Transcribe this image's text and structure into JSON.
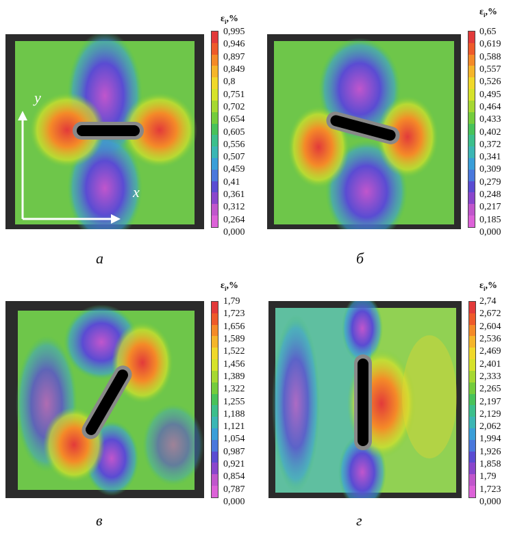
{
  "panels": [
    {
      "id": "a",
      "caption": "а",
      "unit": {
        "symbol": "ε",
        "sub": "i",
        "suffix": ",%"
      },
      "ticks": [
        "0,995",
        "0,946",
        "0,897",
        "0,849",
        "0,8",
        "0,751",
        "0,702",
        "0,654",
        "0,605",
        "0,556",
        "0,507",
        "0,459",
        "0,41",
        "0,361",
        "0,312",
        "0,264",
        "0,000"
      ],
      "axis_x": "x",
      "axis_y": "y",
      "slot_angle_deg": 0
    },
    {
      "id": "b",
      "caption": "б",
      "unit": {
        "symbol": "ε",
        "sub": "i",
        "suffix": ",%"
      },
      "ticks": [
        "0,65",
        "0,619",
        "0,588",
        "0,557",
        "0,526",
        "0,495",
        "0,464",
        "0,433",
        "0,402",
        "0,372",
        "0,341",
        "0,309",
        "0,279",
        "0,248",
        "0,217",
        "0,185",
        "0,000"
      ],
      "slot_angle_deg": 15
    },
    {
      "id": "c",
      "caption": "в",
      "unit": {
        "symbol": "ε",
        "sub": "i",
        "suffix": ",%"
      },
      "ticks": [
        "1,79",
        "1,723",
        "1,656",
        "1,589",
        "1,522",
        "1,456",
        "1,389",
        "1,322",
        "1,255",
        "1,188",
        "1,121",
        "1,054",
        "0,987",
        "0,921",
        "0,854",
        "0,787",
        "0,000"
      ],
      "slot_angle_deg": -60
    },
    {
      "id": "d",
      "caption": "г",
      "unit": {
        "symbol": "ε",
        "sub": "i",
        "suffix": ",%"
      },
      "ticks": [
        "2,74",
        "2,672",
        "2,604",
        "2,536",
        "2,469",
        "2,401",
        "2,333",
        "2,265",
        "2,197",
        "2,129",
        "2,062",
        "1,994",
        "1,926",
        "1,858",
        "1,79",
        "1,723",
        "0,000"
      ],
      "slot_angle_deg": 90
    }
  ],
  "colormap": [
    "#e23a3a",
    "#ee5a2a",
    "#f48a28",
    "#f5b52a",
    "#f0d82a",
    "#d6e22a",
    "#a6d832",
    "#74cc3c",
    "#48c25a",
    "#3cbf8c",
    "#3cb6b4",
    "#3a9ed8",
    "#4a78dc",
    "#5a4cd2",
    "#8a46cc",
    "#c056cc",
    "#dc62d8"
  ]
}
